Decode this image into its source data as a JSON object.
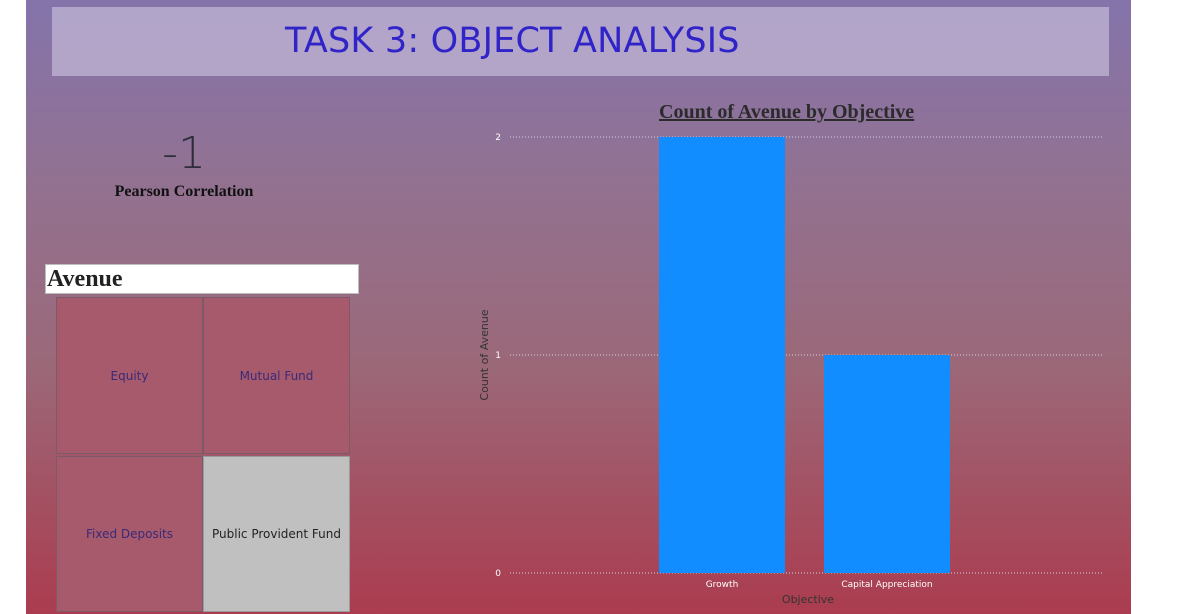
{
  "title_bar": {
    "text": "TASK 3: OBJECT ANALYSIS"
  },
  "kpi": {
    "value": "-1",
    "label": "Pearson Correlation"
  },
  "slicer": {
    "header": "Avenue",
    "tiles": [
      {
        "label": "Equity",
        "selected": false
      },
      {
        "label": "Mutual Fund",
        "selected": false
      },
      {
        "label": "Fixed Deposits",
        "selected": false
      },
      {
        "label": "Public Provident Fund",
        "selected": true
      }
    ]
  },
  "chart_data": {
    "type": "bar",
    "title": "Count of Avenue by Objective",
    "xlabel": "Objective",
    "ylabel": "Count of Avenue",
    "categories": [
      "Growth",
      "Capital Appreciation"
    ],
    "values": [
      2,
      1
    ],
    "ylim": [
      0,
      2
    ],
    "yticks": [
      0,
      1,
      2
    ],
    "grid": true,
    "bar_color": "#118dff"
  },
  "colors": {
    "title_text": "#3024c8",
    "tile_fill": "#a65a6c",
    "tile_selected_fill": "#c0c0c0"
  }
}
